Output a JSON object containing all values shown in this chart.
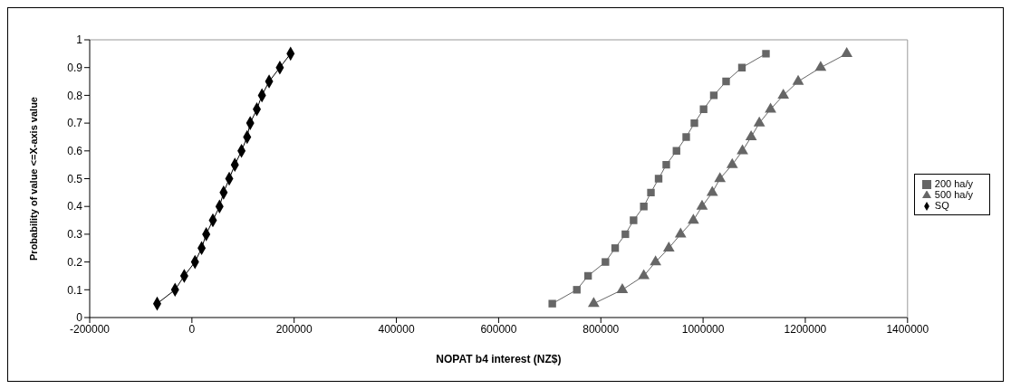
{
  "chart_data": {
    "type": "line",
    "xlabel": "NOPAT b4 interest (NZ$)",
    "ylabel": "Probability of value <=X-axis value",
    "xlim": [
      -200000,
      1400000
    ],
    "xticks": [
      -200000,
      0,
      200000,
      400000,
      600000,
      800000,
      1000000,
      1200000,
      1400000
    ],
    "ylim": [
      0,
      1
    ],
    "yticks": [
      0,
      0.1,
      0.2,
      0.3,
      0.4,
      0.5,
      0.6,
      0.7,
      0.8,
      0.9,
      1
    ],
    "grid": false,
    "legend": "right",
    "series": [
      {
        "name": "SQ",
        "color": "#000000",
        "marker": "diamond",
        "x": [
          -68000,
          -33000,
          -15000,
          6000,
          19000,
          28000,
          41000,
          54000,
          62000,
          73000,
          84000,
          97000,
          108000,
          114000,
          127000,
          137000,
          151000,
          172000,
          193000
        ],
        "values": [
          0.05,
          0.1,
          0.15,
          0.2,
          0.25,
          0.3,
          0.35,
          0.4,
          0.45,
          0.5,
          0.55,
          0.6,
          0.65,
          0.7,
          0.75,
          0.8,
          0.85,
          0.9,
          0.95
        ]
      },
      {
        "name": "200 ha/y",
        "color": "#666666",
        "marker": "square",
        "x": [
          705000,
          753000,
          775000,
          809000,
          828000,
          848000,
          864000,
          884000,
          898000,
          913000,
          928000,
          948000,
          967000,
          983000,
          1001000,
          1021000,
          1045000,
          1076000,
          1123000
        ],
        "values": [
          0.05,
          0.1,
          0.15,
          0.2,
          0.25,
          0.3,
          0.35,
          0.4,
          0.45,
          0.5,
          0.55,
          0.6,
          0.65,
          0.7,
          0.75,
          0.8,
          0.85,
          0.9,
          0.95
        ]
      },
      {
        "name": "500 ha/y",
        "color": "#666666",
        "marker": "triangle",
        "x": [
          786000,
          842000,
          884000,
          907000,
          933000,
          956000,
          981000,
          998000,
          1018000,
          1033000,
          1057000,
          1077000,
          1094000,
          1110000,
          1132000,
          1157000,
          1186000,
          1230000,
          1281000
        ],
        "values": [
          0.05,
          0.1,
          0.15,
          0.2,
          0.25,
          0.3,
          0.35,
          0.4,
          0.45,
          0.5,
          0.55,
          0.6,
          0.65,
          0.7,
          0.75,
          0.8,
          0.85,
          0.9,
          0.95
        ]
      }
    ]
  }
}
